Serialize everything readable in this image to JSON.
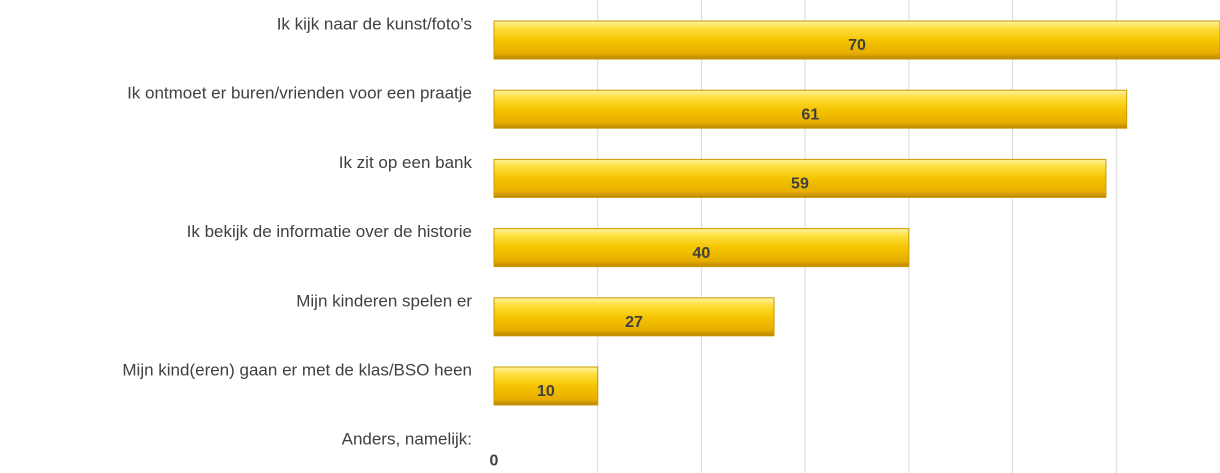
{
  "chart_data": {
    "type": "bar",
    "orientation": "horizontal",
    "categories": [
      "Ik kijk naar de kunst/foto’s",
      "Ik ontmoet er buren/vrienden voor een praatje",
      "Ik zit op een bank",
      "Ik bekijk de informatie over de historie",
      "Mijn kinderen spelen er",
      "Mijn kind(eren) gaan er met de klas/BSO heen",
      "Anders, namelijk:"
    ],
    "values": [
      70,
      61,
      59,
      40,
      27,
      10,
      0
    ],
    "color": "#f2c200",
    "xlim": [
      0,
      70
    ],
    "xticks": [
      10,
      20,
      30,
      40,
      50,
      60
    ],
    "grid": true
  }
}
